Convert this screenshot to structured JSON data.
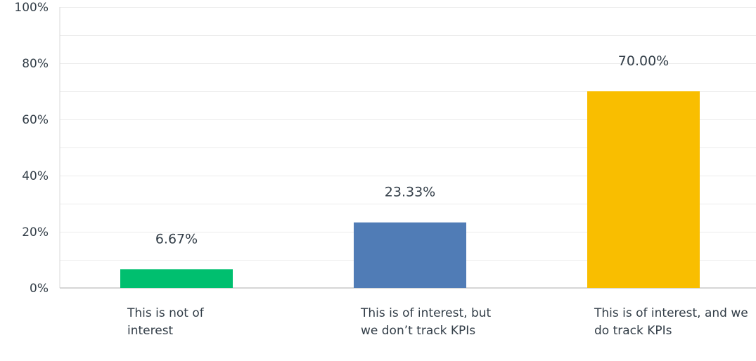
{
  "chart_data": {
    "type": "bar",
    "categories": [
      "This is not of interest",
      "This is of interest, but we don’t track KPIs",
      "This is of interest, and we do track KPIs"
    ],
    "values": [
      6.67,
      23.33,
      70.0
    ],
    "data_labels": [
      "6.67%",
      "23.33%",
      "70.00%"
    ],
    "colors": [
      "#00bf6f",
      "#507cb6",
      "#f9be00"
    ],
    "ylim": [
      0,
      100
    ],
    "yticks": [
      "0%",
      "20%",
      "40%",
      "60%",
      "80%",
      "100%"
    ],
    "grid": true,
    "title": "",
    "xlabel": "",
    "ylabel": ""
  }
}
